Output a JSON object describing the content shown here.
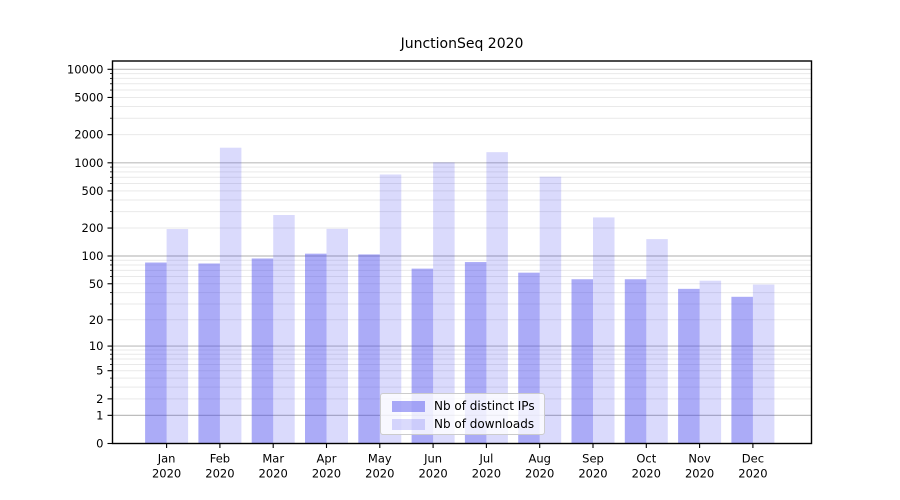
{
  "window": {
    "background": "#ffffff"
  },
  "chart_data": {
    "type": "bar",
    "title": "JunctionSeq 2020",
    "categories": [
      "Jan",
      "Feb",
      "Mar",
      "Apr",
      "May",
      "Jun",
      "Jul",
      "Aug",
      "Sep",
      "Oct",
      "Nov",
      "Dec"
    ],
    "x_year": "2020",
    "series": [
      {
        "name": "Nb of distinct IPs",
        "color": "rgba(68,68,238,0.45)",
        "values": [
          85,
          83,
          94,
          106,
          104,
          73,
          86,
          66,
          56,
          56,
          44,
          36
        ]
      },
      {
        "name": "Nb of downloads",
        "color": "rgba(68,68,238,0.20)",
        "values": [
          195,
          1450,
          276,
          196,
          750,
          1010,
          1300,
          710,
          260,
          152,
          54,
          49
        ]
      }
    ],
    "yscale": "log1p",
    "yticks": [
      0,
      1,
      2,
      5,
      10,
      20,
      50,
      100,
      200,
      500,
      1000,
      2000,
      5000,
      10000
    ],
    "ylim": [
      0,
      12000
    ],
    "grid": {
      "major_values": [
        1,
        10,
        100,
        1000,
        10000
      ],
      "major_color": "#bdbdbd",
      "minor_color": "#e9e9e9"
    },
    "legend": {
      "position": "lower center"
    },
    "axis_color": "#000000",
    "text_color": "#000000"
  }
}
